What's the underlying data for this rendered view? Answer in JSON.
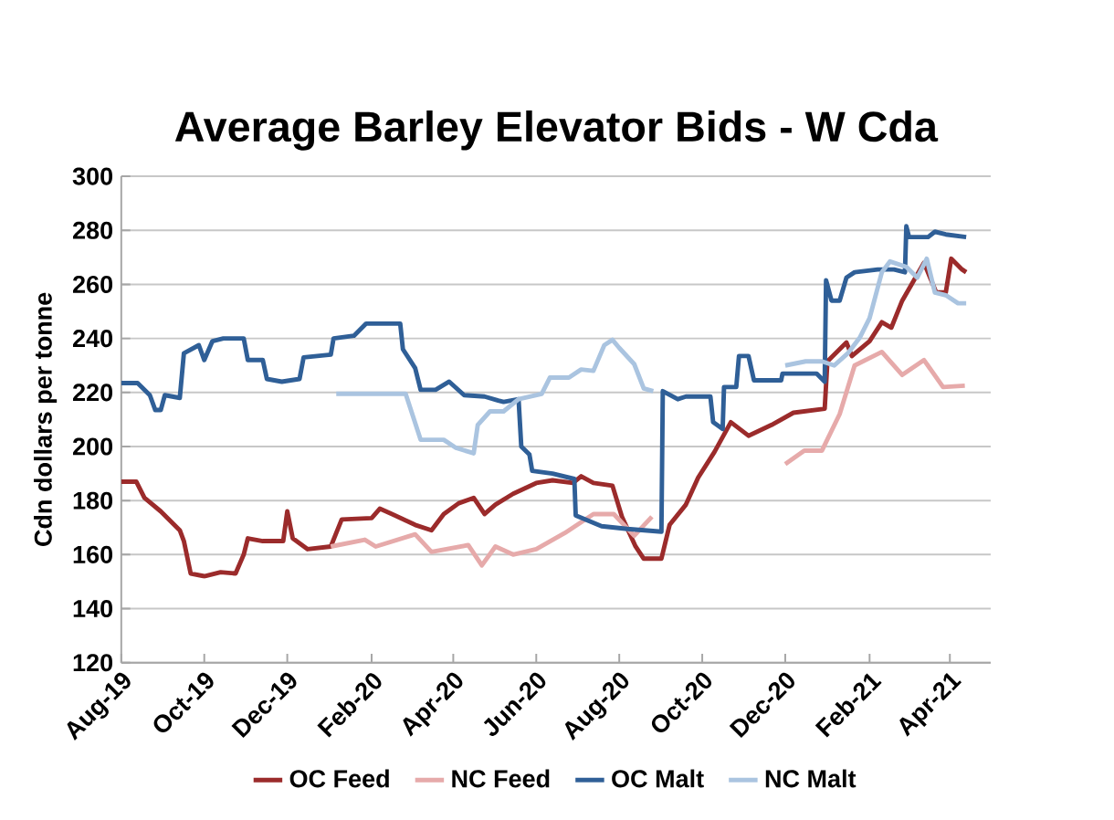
{
  "chart_data": {
    "type": "line",
    "title": "Average Barley Elevator Bids - W Cda",
    "ylabel": "Cdn dollars per tonne",
    "xlim": [
      "2019-08-01",
      "2021-05-01"
    ],
    "ylim": [
      120,
      300
    ],
    "xticks": [
      {
        "value": "2019-08-01",
        "label": "Aug-19"
      },
      {
        "value": "2019-10-01",
        "label": "Oct-19"
      },
      {
        "value": "2019-12-01",
        "label": "Dec-19"
      },
      {
        "value": "2020-02-01",
        "label": "Feb-20"
      },
      {
        "value": "2020-04-01",
        "label": "Apr-20"
      },
      {
        "value": "2020-06-01",
        "label": "Jun-20"
      },
      {
        "value": "2020-08-01",
        "label": "Aug-20"
      },
      {
        "value": "2020-10-01",
        "label": "Oct-20"
      },
      {
        "value": "2020-12-01",
        "label": "Dec-20"
      },
      {
        "value": "2021-02-01",
        "label": "Feb-21"
      },
      {
        "value": "2021-04-01",
        "label": "Apr-21"
      }
    ],
    "yticks": [
      120,
      140,
      160,
      180,
      200,
      220,
      240,
      260,
      280,
      300
    ],
    "grid": "y",
    "legend": "bottom",
    "marker": "none",
    "line_style": "solid",
    "series": [
      {
        "name": "OC Feed",
        "color": "#9b2b2b",
        "x": [
          "2019-08-01",
          "2019-08-12",
          "2019-08-18",
          "2019-08-30",
          "2019-09-13",
          "2019-09-16",
          "2019-09-21",
          "2019-10-01",
          "2019-10-13",
          "2019-10-24",
          "2019-10-30",
          "2019-11-02",
          "2019-11-13",
          "2019-11-28",
          "2019-12-01",
          "2019-12-05",
          "2019-12-16",
          "2020-01-02",
          "2020-01-06",
          "2020-01-10",
          "2020-02-01",
          "2020-02-07",
          "2020-02-16",
          "2020-03-04",
          "2020-03-16",
          "2020-03-25",
          "2020-04-05",
          "2020-04-16",
          "2020-04-24",
          "2020-05-02",
          "2020-05-15",
          "2020-06-01",
          "2020-06-13",
          "2020-06-28",
          "2020-07-04",
          "2020-07-13",
          "2020-07-27",
          "2020-08-03",
          "2020-08-13",
          "2020-08-19",
          "2020-09-01",
          "2020-09-07",
          "2020-09-19",
          "2020-09-28",
          "2020-10-10",
          "2020-10-22",
          "2020-11-04",
          "2020-11-21",
          "2020-12-07",
          "2020-12-30",
          "2021-01-01",
          "2021-01-15",
          "2021-01-19",
          "2021-02-01",
          "2021-02-10",
          "2021-02-17",
          "2021-02-25",
          "2021-03-13",
          "2021-03-22",
          "2021-03-29",
          "2021-04-02",
          "2021-04-10",
          "2021-04-13"
        ],
        "values": [
          187,
          187,
          181,
          176,
          169,
          165,
          153,
          152,
          153.5,
          153,
          160,
          166,
          165,
          165,
          176,
          166,
          162,
          163,
          168,
          173,
          173.5,
          177,
          175,
          171,
          169,
          175,
          179,
          181,
          175,
          178.5,
          182.5,
          186.5,
          187.5,
          186.5,
          189,
          186.5,
          185.5,
          174,
          163,
          158.5,
          158.5,
          171,
          178.5,
          188.5,
          198,
          209,
          204,
          208,
          212.5,
          214,
          231.5,
          238.5,
          233.5,
          239,
          246,
          244,
          254,
          268,
          257,
          257,
          269.5,
          265.5,
          264.5
        ]
      },
      {
        "name": "NC Feed",
        "color": "#e6aaaa",
        "x": [
          "2020-01-02",
          "2020-01-27",
          "2020-02-04",
          "2020-03-04",
          "2020-03-16",
          "2020-04-12",
          "2020-04-22",
          "2020-05-02",
          "2020-05-15",
          "2020-06-01",
          "2020-06-22",
          "2020-07-13",
          "2020-07-28",
          "2020-08-12",
          "2020-08-25",
          "2020-10-16",
          "2020-12-01",
          "2020-12-15",
          "2020-12-28",
          "2021-01-10",
          "2021-01-21",
          "2021-02-10",
          "2021-02-25",
          "2021-03-13",
          "2021-03-27",
          "2021-04-12"
        ],
        "values": [
          163,
          165.5,
          163,
          167.5,
          161,
          163.5,
          156,
          163,
          160,
          162,
          168,
          175,
          175,
          167,
          174,
          null,
          193.5,
          198.5,
          198.5,
          212,
          230,
          235,
          226.5,
          232,
          222,
          222.5
        ]
      },
      {
        "name": "OC Malt",
        "color": "#2f5f97",
        "x": [
          "2019-08-01",
          "2019-08-13",
          "2019-08-22",
          "2019-08-26",
          "2019-08-30",
          "2019-09-02",
          "2019-09-13",
          "2019-09-16",
          "2019-09-27",
          "2019-10-01",
          "2019-10-07",
          "2019-10-15",
          "2019-10-30",
          "2019-11-02",
          "2019-11-13",
          "2019-11-16",
          "2019-11-27",
          "2019-12-10",
          "2019-12-13",
          "2020-01-02",
          "2020-01-04",
          "2020-01-19",
          "2020-01-28",
          "2020-02-22",
          "2020-02-24",
          "2020-03-04",
          "2020-03-08",
          "2020-03-19",
          "2020-03-29",
          "2020-04-09",
          "2020-04-24",
          "2020-05-04",
          "2020-05-08",
          "2020-05-19",
          "2020-05-21",
          "2020-05-27",
          "2020-05-29",
          "2020-06-13",
          "2020-06-29",
          "2020-06-30",
          "2020-07-19",
          "2020-08-07",
          "2020-09-01",
          "2020-09-02",
          "2020-09-13",
          "2020-09-19",
          "2020-10-07",
          "2020-10-09",
          "2020-10-16",
          "2020-10-17",
          "2020-10-26",
          "2020-10-28",
          "2020-11-04",
          "2020-11-08",
          "2020-11-28",
          "2020-11-29",
          "2020-12-24",
          "2020-12-30",
          "2020-12-31",
          "2021-01-04",
          "2021-01-10",
          "2021-01-15",
          "2021-01-21",
          "2021-02-07",
          "2021-02-19",
          "2021-02-27",
          "2021-02-28",
          "2021-03-02",
          "2021-03-16",
          "2021-03-21",
          "2021-03-29",
          "2021-04-13"
        ],
        "values": [
          223.5,
          223.5,
          219,
          213.5,
          213.5,
          219,
          218,
          234.5,
          237.5,
          232,
          239,
          240,
          240,
          232,
          232,
          225,
          224,
          225,
          233,
          234,
          240,
          241,
          245.5,
          245.5,
          236,
          229,
          221,
          221,
          224,
          219,
          218.5,
          217,
          216.5,
          217.5,
          200,
          197,
          191,
          190,
          188,
          174.5,
          170.5,
          169.5,
          168.5,
          220.5,
          217.5,
          218.5,
          218.5,
          209,
          206.5,
          222,
          222,
          233.5,
          233.5,
          224.5,
          224.5,
          227,
          227,
          224,
          261.5,
          254,
          254,
          262.5,
          264.5,
          265.5,
          265.5,
          264.5,
          281.5,
          277.5,
          277.5,
          279.5,
          278.5,
          277.5
        ]
      },
      {
        "name": "NC Malt",
        "color": "#aac4e0",
        "x": [
          "2020-01-06",
          "2020-02-26",
          "2020-03-08",
          "2020-03-25",
          "2020-04-03",
          "2020-04-16",
          "2020-04-19",
          "2020-04-28",
          "2020-05-08",
          "2020-05-19",
          "2020-06-05",
          "2020-06-11",
          "2020-06-25",
          "2020-07-04",
          "2020-07-13",
          "2020-07-21",
          "2020-07-27",
          "2020-08-01",
          "2020-08-12",
          "2020-08-19",
          "2020-08-26",
          "2020-10-16",
          "2020-12-01",
          "2020-12-16",
          "2020-12-28",
          "2021-01-06",
          "2021-01-16",
          "2021-01-25",
          "2021-02-01",
          "2021-02-10",
          "2021-02-16",
          "2021-02-28",
          "2021-03-08",
          "2021-03-15",
          "2021-03-21",
          "2021-03-29",
          "2021-04-07",
          "2021-04-13"
        ],
        "values": [
          219.5,
          219.5,
          202.5,
          202.5,
          199.5,
          197.5,
          208,
          213,
          213,
          217.5,
          219.5,
          225.5,
          225.5,
          228.5,
          228,
          237.5,
          239.5,
          236.5,
          230.5,
          221.5,
          220.5,
          null,
          230,
          231.5,
          231.5,
          230,
          234.5,
          240.5,
          247.5,
          264.5,
          268.5,
          266.5,
          262.5,
          269.5,
          257,
          256,
          253,
          253
        ]
      }
    ]
  }
}
